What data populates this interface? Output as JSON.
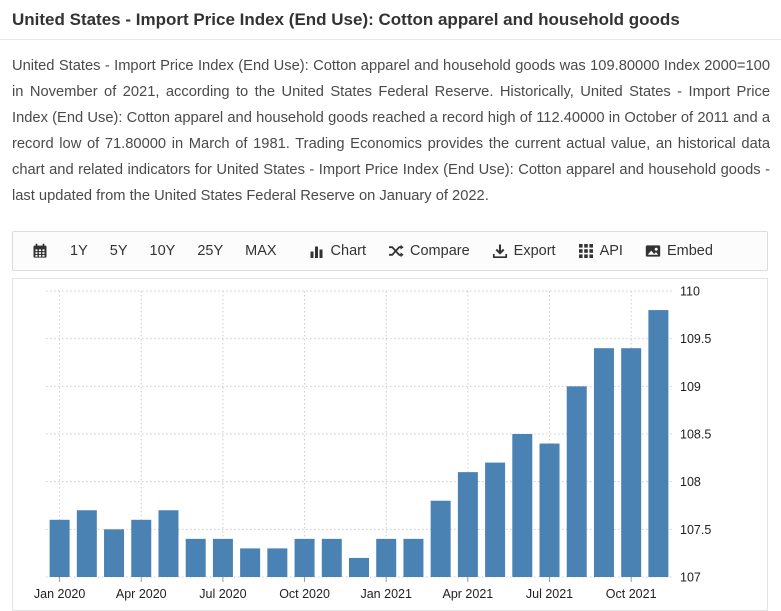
{
  "page": {
    "title": "United States - Import Price Index (End Use): Cotton apparel and household goods",
    "description": "United States - Import Price Index (End Use): Cotton apparel and household goods was 109.80000 Index 2000=100 in November of 2021, according to the United States Federal Reserve. Historically, United States - Import Price Index (End Use): Cotton apparel and household goods reached a record high of 112.40000 in October of 2011 and a record low of 71.80000 in March of 1981. Trading Economics provides the current actual value, an historical data chart and related indicators for United States - Import Price Index (End Use): Cotton apparel and household goods - last updated from the United States Federal Reserve on January of 2022."
  },
  "toolbar": {
    "calendar_icon": "calendar-icon",
    "ranges": [
      "1Y",
      "5Y",
      "10Y",
      "25Y",
      "MAX"
    ],
    "actions": [
      {
        "icon": "chart-icon",
        "label": "Chart"
      },
      {
        "icon": "compare-icon",
        "label": "Compare"
      },
      {
        "icon": "export-icon",
        "label": "Export"
      },
      {
        "icon": "api-icon",
        "label": "API"
      },
      {
        "icon": "embed-icon",
        "label": "Embed"
      }
    ]
  },
  "chart_data": {
    "type": "bar",
    "title": "United States - Import Price Index (End Use): Cotton apparel and household goods",
    "xlabel": "",
    "ylabel": "Index 2000=100",
    "categories": [
      "Jan 2020",
      "Feb 2020",
      "Mar 2020",
      "Apr 2020",
      "May 2020",
      "Jun 2020",
      "Jul 2020",
      "Aug 2020",
      "Sep 2020",
      "Oct 2020",
      "Nov 2020",
      "Dec 2020",
      "Jan 2021",
      "Feb 2021",
      "Mar 2021",
      "Apr 2021",
      "May 2021",
      "Jun 2021",
      "Jul 2021",
      "Aug 2021",
      "Sep 2021",
      "Oct 2021",
      "Nov 2021"
    ],
    "values": [
      107.6,
      107.7,
      107.5,
      107.6,
      107.7,
      107.4,
      107.4,
      107.3,
      107.3,
      107.4,
      107.4,
      107.2,
      107.4,
      107.4,
      107.8,
      108.1,
      108.2,
      108.5,
      108.4,
      109.0,
      109.4,
      109.4,
      109.8
    ],
    "x_tick_labels": [
      "Jan 2020",
      "Apr 2020",
      "Jul 2020",
      "Oct 2020",
      "Jan 2021",
      "Apr 2021",
      "Jul 2021",
      "Oct 2021"
    ],
    "x_tick_indices": [
      0,
      3,
      6,
      9,
      12,
      15,
      18,
      21
    ],
    "y_ticks": [
      107,
      107.5,
      108,
      108.5,
      109,
      109.5,
      110
    ],
    "ylim": [
      107,
      110
    ],
    "y_axis_side": "right",
    "grid": true,
    "bar_color": "#4A82B4",
    "grid_color": "#cccccc",
    "tick_color": "#999999",
    "label_color": "#222222"
  }
}
